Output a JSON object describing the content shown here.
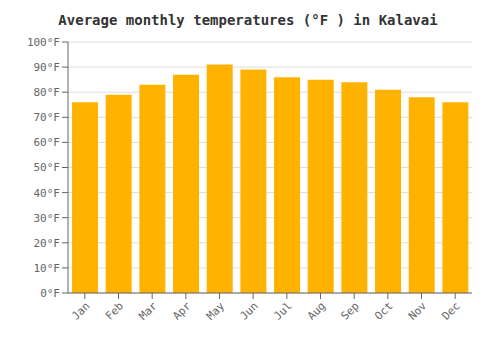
{
  "chart_data": {
    "type": "bar",
    "title": "Average monthly temperatures (°F ) in Kalavai",
    "categories": [
      "Jan",
      "Feb",
      "Mar",
      "Apr",
      "May",
      "Jun",
      "Jul",
      "Aug",
      "Sep",
      "Oct",
      "Nov",
      "Dec"
    ],
    "values": [
      76,
      79,
      83,
      87,
      91,
      89,
      86,
      85,
      84,
      81,
      78,
      76
    ],
    "color": "#FFB300",
    "ylim": [
      0,
      100
    ],
    "yticks": [
      {
        "value": 0,
        "label": "0°F"
      },
      {
        "value": 10,
        "label": "10°F"
      },
      {
        "value": 20,
        "label": "20°F"
      },
      {
        "value": 30,
        "label": "30°F"
      },
      {
        "value": 40,
        "label": "40°F"
      },
      {
        "value": 50,
        "label": "50°F"
      },
      {
        "value": 60,
        "label": "60°F"
      },
      {
        "value": 70,
        "label": "70°F"
      },
      {
        "value": 80,
        "label": "80°F"
      },
      {
        "value": 90,
        "label": "90°F"
      },
      {
        "value": 100,
        "label": "100°F"
      }
    ],
    "grid": true
  }
}
